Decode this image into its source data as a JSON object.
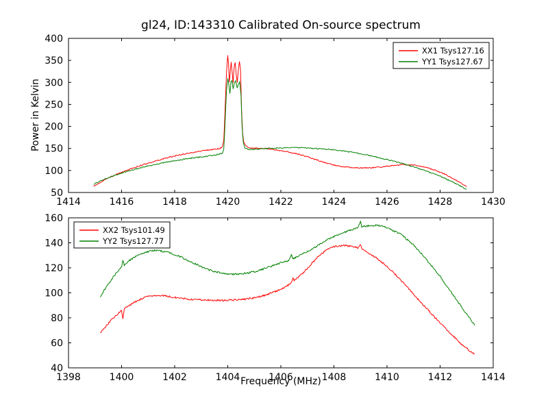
{
  "figure": {
    "title": "gl24, ID:143310 Calibrated On-source spectrum",
    "background": "#ffffff",
    "axis_color": "#000000"
  },
  "chart_data": [
    {
      "type": "line",
      "title": "gl24, ID:143310 Calibrated On-source spectrum",
      "xlabel": "",
      "ylabel": "Power in Kelvin",
      "xlim": [
        1414,
        1430
      ],
      "ylim": [
        50,
        400
      ],
      "xticks": [
        1414,
        1416,
        1418,
        1420,
        1422,
        1424,
        1426,
        1428,
        1430
      ],
      "yticks": [
        50,
        100,
        150,
        200,
        250,
        300,
        350,
        400
      ],
      "grid": false,
      "legend_position": "upper right",
      "noise": 1.2,
      "series": [
        {
          "name": "XX1 Tsys127.16",
          "color": "#ff0000",
          "points": [
            [
              1414.95,
              64
            ],
            [
              1415.2,
              73
            ],
            [
              1415.5,
              83
            ],
            [
              1415.8,
              91
            ],
            [
              1416.1,
              98
            ],
            [
              1416.4,
              105
            ],
            [
              1416.8,
              113
            ],
            [
              1417.2,
              120
            ],
            [
              1417.6,
              127
            ],
            [
              1418.0,
              133
            ],
            [
              1418.4,
              138
            ],
            [
              1418.8,
              142
            ],
            [
              1419.2,
              146
            ],
            [
              1419.5,
              148
            ],
            [
              1419.7,
              150
            ],
            [
              1419.8,
              153
            ],
            [
              1419.85,
              170
            ],
            [
              1419.9,
              240
            ],
            [
              1419.95,
              320
            ],
            [
              1420.0,
              362
            ],
            [
              1420.03,
              340
            ],
            [
              1420.06,
              300
            ],
            [
              1420.1,
              330
            ],
            [
              1420.13,
              345
            ],
            [
              1420.17,
              320
            ],
            [
              1420.2,
              300
            ],
            [
              1420.24,
              335
            ],
            [
              1420.28,
              345
            ],
            [
              1420.32,
              318
            ],
            [
              1420.36,
              300
            ],
            [
              1420.4,
              330
            ],
            [
              1420.44,
              348
            ],
            [
              1420.48,
              330
            ],
            [
              1420.52,
              240
            ],
            [
              1420.56,
              185
            ],
            [
              1420.6,
              165
            ],
            [
              1420.7,
              155
            ],
            [
              1420.8,
              152
            ],
            [
              1421.0,
              151
            ],
            [
              1421.4,
              150
            ],
            [
              1421.8,
              147
            ],
            [
              1422.2,
              143
            ],
            [
              1422.6,
              138
            ],
            [
              1423.0,
              131
            ],
            [
              1423.4,
              123
            ],
            [
              1423.8,
              115
            ],
            [
              1424.2,
              110
            ],
            [
              1424.6,
              107
            ],
            [
              1425.0,
              106
            ],
            [
              1425.4,
              106
            ],
            [
              1425.8,
              108
            ],
            [
              1426.2,
              111
            ],
            [
              1426.6,
              113
            ],
            [
              1427.0,
              112
            ],
            [
              1427.4,
              108
            ],
            [
              1427.8,
              101
            ],
            [
              1428.2,
              91
            ],
            [
              1428.6,
              78
            ],
            [
              1429.0,
              63
            ]
          ]
        },
        {
          "name": "YY1 Tsys127.67",
          "color": "#008000",
          "points": [
            [
              1414.95,
              69
            ],
            [
              1415.3,
              79
            ],
            [
              1415.7,
              88
            ],
            [
              1416.1,
              96
            ],
            [
              1416.5,
              103
            ],
            [
              1416.9,
              109
            ],
            [
              1417.3,
              114
            ],
            [
              1417.7,
              119
            ],
            [
              1418.1,
              123
            ],
            [
              1418.5,
              127
            ],
            [
              1418.9,
              130
            ],
            [
              1419.3,
              133
            ],
            [
              1419.6,
              136
            ],
            [
              1419.8,
              139
            ],
            [
              1419.85,
              150
            ],
            [
              1419.9,
              210
            ],
            [
              1419.95,
              280
            ],
            [
              1420.0,
              308
            ],
            [
              1420.04,
              295
            ],
            [
              1420.08,
              275
            ],
            [
              1420.12,
              300
            ],
            [
              1420.16,
              305
            ],
            [
              1420.2,
              285
            ],
            [
              1420.25,
              298
            ],
            [
              1420.3,
              305
            ],
            [
              1420.35,
              288
            ],
            [
              1420.4,
              295
            ],
            [
              1420.45,
              302
            ],
            [
              1420.5,
              270
            ],
            [
              1420.54,
              200
            ],
            [
              1420.58,
              165
            ],
            [
              1420.65,
              150
            ],
            [
              1420.8,
              148
            ],
            [
              1421.0,
              148
            ],
            [
              1421.5,
              150
            ],
            [
              1422.0,
              151
            ],
            [
              1422.5,
              152
            ],
            [
              1423.0,
              151
            ],
            [
              1423.5,
              149
            ],
            [
              1424.0,
              147
            ],
            [
              1424.5,
              143
            ],
            [
              1425.0,
              138
            ],
            [
              1425.5,
              132
            ],
            [
              1426.0,
              125
            ],
            [
              1426.5,
              117
            ],
            [
              1427.0,
              108
            ],
            [
              1427.5,
              98
            ],
            [
              1428.0,
              87
            ],
            [
              1428.5,
              73
            ],
            [
              1429.0,
              57
            ]
          ]
        }
      ]
    },
    {
      "type": "line",
      "title": "",
      "xlabel": "Frequency (MHz)",
      "ylabel": "",
      "xlim": [
        1398,
        1414
      ],
      "ylim": [
        40,
        160
      ],
      "xticks": [
        1398,
        1400,
        1402,
        1404,
        1406,
        1408,
        1410,
        1412,
        1414
      ],
      "yticks": [
        40,
        60,
        80,
        100,
        120,
        140,
        160
      ],
      "grid": false,
      "legend_position": "upper left",
      "noise": 0.7,
      "series": [
        {
          "name": "XX2 Tsys101.49",
          "color": "#ff0000",
          "points": [
            [
              1399.2,
              68
            ],
            [
              1399.4,
              73
            ],
            [
              1399.6,
              78
            ],
            [
              1399.8,
              82
            ],
            [
              1399.95,
              85
            ],
            [
              1400.0,
              86
            ],
            [
              1400.05,
              79
            ],
            [
              1400.1,
              87
            ],
            [
              1400.3,
              90
            ],
            [
              1400.6,
              94
            ],
            [
              1400.9,
              96.5
            ],
            [
              1401.2,
              98
            ],
            [
              1401.5,
              98
            ],
            [
              1401.8,
              97
            ],
            [
              1402.1,
              96
            ],
            [
              1402.5,
              95
            ],
            [
              1403.0,
              94.5
            ],
            [
              1403.5,
              94
            ],
            [
              1404.0,
              94
            ],
            [
              1404.5,
              94.5
            ],
            [
              1405.0,
              96
            ],
            [
              1405.4,
              98
            ],
            [
              1405.8,
              101
            ],
            [
              1406.2,
              105
            ],
            [
              1406.4,
              108
            ],
            [
              1406.45,
              112
            ],
            [
              1406.5,
              110
            ],
            [
              1406.8,
              115
            ],
            [
              1407.1,
              122
            ],
            [
              1407.4,
              129
            ],
            [
              1407.7,
              134
            ],
            [
              1408.0,
              137
            ],
            [
              1408.3,
              138
            ],
            [
              1408.6,
              137.5
            ],
            [
              1408.9,
              136
            ],
            [
              1409.0,
              139
            ],
            [
              1409.05,
              135
            ],
            [
              1409.3,
              132
            ],
            [
              1409.6,
              128
            ],
            [
              1410.0,
              121
            ],
            [
              1410.4,
              113
            ],
            [
              1410.8,
              104
            ],
            [
              1411.2,
              94
            ],
            [
              1411.6,
              85
            ],
            [
              1412.0,
              76
            ],
            [
              1412.4,
              67
            ],
            [
              1412.8,
              59
            ],
            [
              1413.1,
              54
            ],
            [
              1413.3,
              51
            ]
          ]
        },
        {
          "name": "YY2 Tsys127.77",
          "color": "#008000",
          "points": [
            [
              1399.2,
              97
            ],
            [
              1399.4,
              104
            ],
            [
              1399.6,
              110
            ],
            [
              1399.8,
              116
            ],
            [
              1399.95,
              120
            ],
            [
              1400.0,
              121
            ],
            [
              1400.05,
              126
            ],
            [
              1400.1,
              122
            ],
            [
              1400.3,
              126
            ],
            [
              1400.6,
              130
            ],
            [
              1400.9,
              132.5
            ],
            [
              1401.2,
              134
            ],
            [
              1401.5,
              133.5
            ],
            [
              1401.8,
              132
            ],
            [
              1402.1,
              130
            ],
            [
              1402.4,
              127
            ],
            [
              1402.8,
              123
            ],
            [
              1403.2,
              119
            ],
            [
              1403.6,
              116.5
            ],
            [
              1404.0,
              115
            ],
            [
              1404.4,
              115
            ],
            [
              1404.8,
              116
            ],
            [
              1405.2,
              118
            ],
            [
              1405.6,
              121
            ],
            [
              1406.0,
              124
            ],
            [
              1406.3,
              126
            ],
            [
              1406.4,
              131
            ],
            [
              1406.45,
              127
            ],
            [
              1406.7,
              130
            ],
            [
              1407.0,
              133
            ],
            [
              1407.4,
              138
            ],
            [
              1407.8,
              143
            ],
            [
              1408.2,
              147
            ],
            [
              1408.6,
              150
            ],
            [
              1408.9,
              152
            ],
            [
              1409.0,
              157
            ],
            [
              1409.05,
              153
            ],
            [
              1409.3,
              153.5
            ],
            [
              1409.6,
              154
            ],
            [
              1409.9,
              153
            ],
            [
              1410.2,
              150
            ],
            [
              1410.5,
              147
            ],
            [
              1410.8,
              142
            ],
            [
              1411.1,
              136
            ],
            [
              1411.4,
              129
            ],
            [
              1411.7,
              121
            ],
            [
              1412.0,
              113
            ],
            [
              1412.3,
              104
            ],
            [
              1412.6,
              95
            ],
            [
              1412.9,
              86
            ],
            [
              1413.1,
              80
            ],
            [
              1413.3,
              74
            ]
          ]
        }
      ]
    }
  ]
}
